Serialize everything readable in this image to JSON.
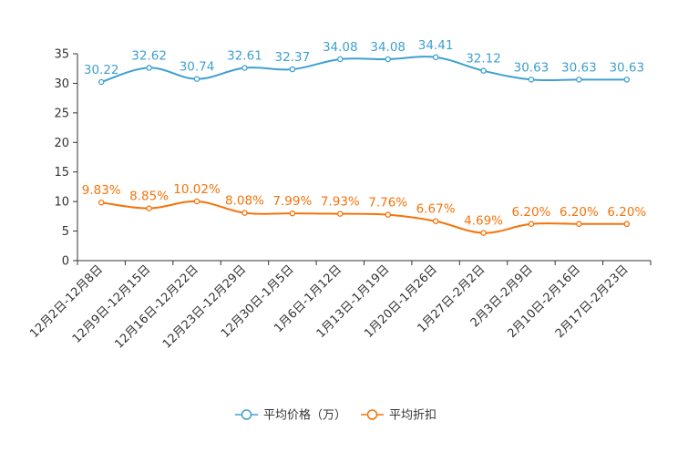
{
  "chart_data": {
    "type": "line",
    "categories": [
      "12月2日-12月8日",
      "12月9日-12月15日",
      "12月16日-12月22日",
      "12月23日-12月29日",
      "12月30日-1月5日",
      "1月6日-1月12日",
      "1月13日-1月19日",
      "1月20日-1月26日",
      "1月27日-2月2日",
      "2月3日-2月9日",
      "2月10日-2月16日",
      "2月17日-2月23日"
    ],
    "ylim": [
      0,
      35
    ],
    "yticks": [
      0,
      5,
      10,
      15,
      20,
      25,
      30,
      35
    ],
    "series": [
      {
        "name": "平均价格（万）",
        "color": "#3fa0cf",
        "values": [
          30.22,
          32.62,
          30.74,
          32.61,
          32.37,
          34.08,
          34.08,
          34.41,
          32.12,
          30.63,
          30.63,
          30.63
        ],
        "labels": [
          "30.22",
          "32.62",
          "30.74",
          "32.61",
          "32.37",
          "34.08",
          "34.08",
          "34.41",
          "32.12",
          "30.63",
          "30.63",
          "30.63"
        ]
      },
      {
        "name": "平均折扣",
        "color": "#f5730a",
        "values": [
          9.83,
          8.85,
          10.02,
          8.08,
          7.99,
          7.93,
          7.76,
          6.67,
          4.69,
          6.2,
          6.2,
          6.2
        ],
        "labels": [
          "9.83%",
          "8.85%",
          "10.02%",
          "8.08%",
          "7.99%",
          "7.93%",
          "7.76%",
          "6.67%",
          "4.69%",
          "6.20%",
          "6.20%",
          "6.20%"
        ]
      }
    ],
    "legend_position": "bottom-center"
  }
}
